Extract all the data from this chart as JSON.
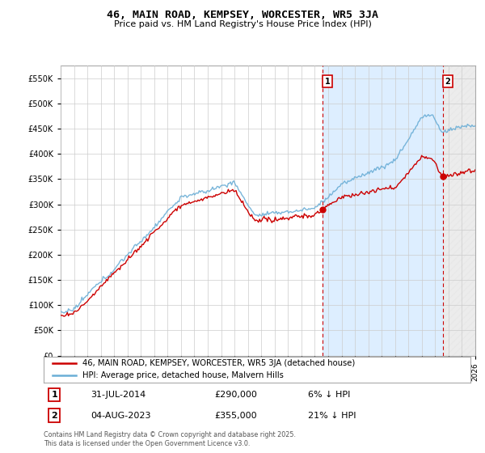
{
  "title": "46, MAIN ROAD, KEMPSEY, WORCESTER, WR5 3JA",
  "subtitle": "Price paid vs. HM Land Registry's House Price Index (HPI)",
  "legend_line1": "46, MAIN ROAD, KEMPSEY, WORCESTER, WR5 3JA (detached house)",
  "legend_line2": "HPI: Average price, detached house, Malvern Hills",
  "annotation1_label": "1",
  "annotation1_text": "31-JUL-2014",
  "annotation1_price": "£290,000",
  "annotation1_pct": "6% ↓ HPI",
  "annotation2_label": "2",
  "annotation2_text": "04-AUG-2023",
  "annotation2_price": "£355,000",
  "annotation2_pct": "21% ↓ HPI",
  "footer": "Contains HM Land Registry data © Crown copyright and database right 2025.\nThis data is licensed under the Open Government Licence v3.0.",
  "hpi_color": "#6baed6",
  "price_color": "#cc0000",
  "vline_color": "#cc0000",
  "background_color": "#ffffff",
  "grid_color": "#cccccc",
  "fill_color": "#ddeeff",
  "hatch_color": "#bbbbbb",
  "ylim": [
    0,
    575000
  ],
  "yticks": [
    0,
    50000,
    100000,
    150000,
    200000,
    250000,
    300000,
    350000,
    400000,
    450000,
    500000,
    550000
  ],
  "xlim": [
    1995,
    2026
  ],
  "annotation1_year": 2014.58,
  "annotation2_year": 2023.58,
  "dot1_value": 290000,
  "dot2_value": 355000
}
